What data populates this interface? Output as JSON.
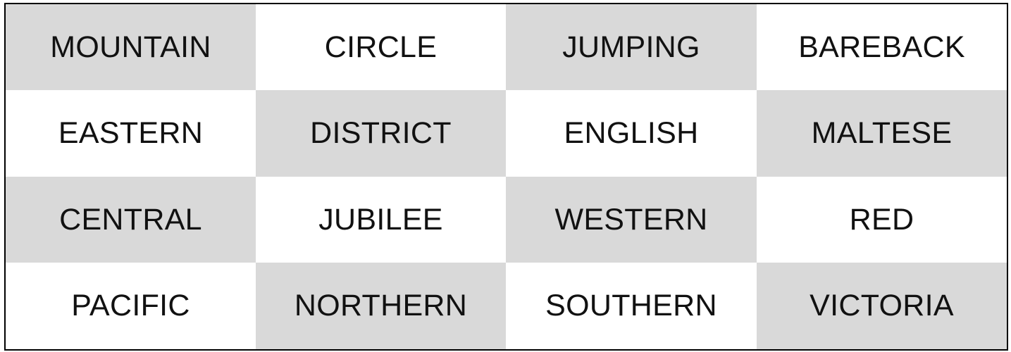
{
  "colors": {
    "shaded": "#d9d9d9",
    "plain": "#ffffff",
    "border": "#000000",
    "text": "#111111"
  },
  "tiles": [
    {
      "word": "MOUNTAIN",
      "shade": "shaded"
    },
    {
      "word": "CIRCLE",
      "shade": "plain"
    },
    {
      "word": "JUMPING",
      "shade": "shaded"
    },
    {
      "word": "BAREBACK",
      "shade": "plain"
    },
    {
      "word": "EASTERN",
      "shade": "plain"
    },
    {
      "word": "DISTRICT",
      "shade": "shaded"
    },
    {
      "word": "ENGLISH",
      "shade": "plain"
    },
    {
      "word": "MALTESE",
      "shade": "shaded"
    },
    {
      "word": "CENTRAL",
      "shade": "shaded"
    },
    {
      "word": "JUBILEE",
      "shade": "plain"
    },
    {
      "word": "WESTERN",
      "shade": "shaded"
    },
    {
      "word": "RED",
      "shade": "plain"
    },
    {
      "word": "PACIFIC",
      "shade": "plain"
    },
    {
      "word": "NORTHERN",
      "shade": "shaded"
    },
    {
      "word": "SOUTHERN",
      "shade": "plain"
    },
    {
      "word": "VICTORIA",
      "shade": "shaded"
    }
  ]
}
